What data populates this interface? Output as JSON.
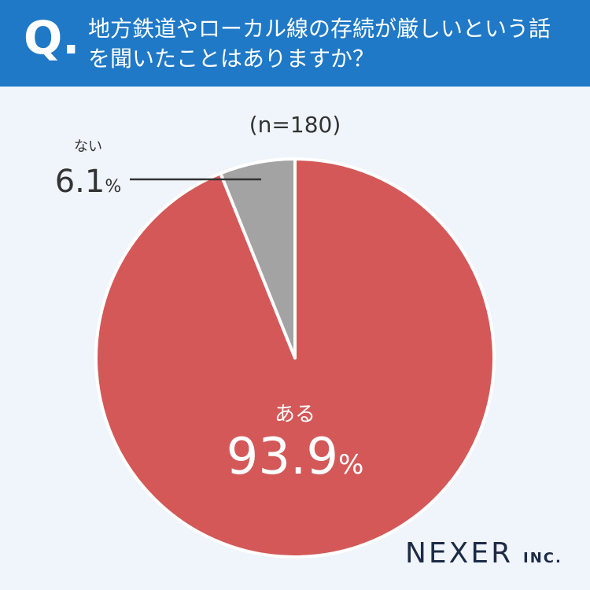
{
  "header": {
    "mark": "Q.",
    "question": "地方鉄道やローカル線の存続が厳しいという話を聞いたことはありますか？"
  },
  "chart_data": {
    "type": "pie",
    "subtitle": "(n=180)",
    "categories": [
      "ある",
      "ない"
    ],
    "values": [
      93.9,
      6.1
    ],
    "value_unit": "%",
    "colors": [
      "#d45858",
      "#a3a3a3"
    ]
  },
  "footer": {
    "logo": "NEXER",
    "logo_suffix": "INC."
  }
}
